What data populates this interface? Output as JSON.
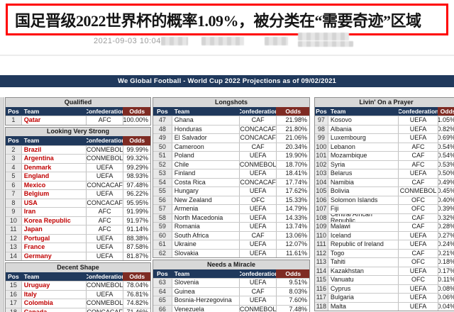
{
  "headline": {
    "text": "国足晋级2022世界杯的概率1.09%，被分类在“需要奇迹”区域"
  },
  "meta": {
    "timestamp": "2021-09-03 10:04:01",
    "redacted_note": "blurred source text"
  },
  "colors": {
    "headline_border": "#ff0000",
    "navy_header": "#20395c",
    "odds_maroon": "#7e2b23",
    "section_gray": "#d8d8d8",
    "qualified_team_red": "#c00000"
  },
  "report": {
    "title": "We Global Football - World Cup 2022 Projections as of 09/02/2021",
    "columns": [
      "Pos",
      "Team",
      "Confederation",
      "Odds"
    ],
    "tables": [
      {
        "name": "qualified-column",
        "blocks": [
          {
            "section": "Qualified",
            "rows": [
              [
                "1",
                "Qatar",
                "AFC",
                "100.00%"
              ]
            ]
          },
          {
            "section": "Looking Very Strong",
            "rows": [
              [
                "2",
                "Brazil",
                "CONMEBOL",
                "99.99%"
              ],
              [
                "3",
                "Argentina",
                "CONMEBOL",
                "99.32%"
              ],
              [
                "4",
                "Denmark",
                "UEFA",
                "99.29%"
              ],
              [
                "5",
                "England",
                "UEFA",
                "98.93%"
              ],
              [
                "6",
                "Mexico",
                "CONCACAF",
                "97.48%"
              ],
              [
                "7",
                "Belgium",
                "UEFA",
                "96.22%"
              ],
              [
                "8",
                "USA",
                "CONCACAF",
                "95.95%"
              ],
              [
                "9",
                "Iran",
                "AFC",
                "91.99%"
              ],
              [
                "10",
                "Korea Republic",
                "AFC",
                "91.97%"
              ],
              [
                "11",
                "Japan",
                "AFC",
                "91.14%"
              ],
              [
                "12",
                "Portugal",
                "UEFA",
                "88.38%"
              ],
              [
                "13",
                "France",
                "UEFA",
                "87.58%"
              ],
              [
                "14",
                "Germany",
                "UEFA",
                "81.87%"
              ]
            ]
          },
          {
            "section": "Decent Shape",
            "rows": [
              [
                "15",
                "Uruguay",
                "CONMEBOL",
                "78.04%"
              ],
              [
                "16",
                "Italy",
                "UEFA",
                "76.81%"
              ],
              [
                "17",
                "Colombia",
                "CONMEBOL",
                "74.82%"
              ],
              [
                "18",
                "Canada",
                "CONCACAF",
                "71.46%"
              ]
            ]
          }
        ]
      },
      {
        "name": "longshots-column",
        "blocks": [
          {
            "section": "Longshots",
            "rows": [
              [
                "47",
                "Ghana",
                "CAF",
                "21.98%"
              ],
              [
                "48",
                "Honduras",
                "CONCACAF",
                "21.80%"
              ],
              [
                "49",
                "El Salvador",
                "CONCACAF",
                "21.06%"
              ],
              [
                "50",
                "Cameroon",
                "CAF",
                "20.34%"
              ],
              [
                "51",
                "Poland",
                "UEFA",
                "19.90%"
              ],
              [
                "52",
                "Chile",
                "CONMEBOL",
                "18.70%"
              ],
              [
                "53",
                "Finland",
                "UEFA",
                "18.41%"
              ],
              [
                "54",
                "Costa Rica",
                "CONCACAF",
                "17.74%"
              ],
              [
                "55",
                "Hungary",
                "UEFA",
                "17.62%"
              ],
              [
                "56",
                "New Zealand",
                "OFC",
                "15.33%"
              ],
              [
                "57",
                "Armenia",
                "UEFA",
                "14.79%"
              ],
              [
                "58",
                "North Macedonia",
                "UEFA",
                "14.33%"
              ],
              [
                "59",
                "Romania",
                "UEFA",
                "13.74%"
              ],
              [
                "60",
                "South Africa",
                "CAF",
                "13.06%"
              ],
              [
                "61",
                "Ukraine",
                "UEFA",
                "12.07%"
              ],
              [
                "62",
                "Slovakia",
                "UEFA",
                "11.61%"
              ]
            ]
          },
          {
            "section": "Needs a Miracle",
            "rows": [
              [
                "63",
                "Slovenia",
                "UEFA",
                "9.51%"
              ],
              [
                "64",
                "Guinea",
                "CAF",
                "8.03%"
              ],
              [
                "65",
                "Bosnia-Herzegovina",
                "UEFA",
                "7.60%"
              ],
              [
                "66",
                "Venezuela",
                "CONMEBOL",
                "7.48%"
              ]
            ]
          }
        ]
      },
      {
        "name": "livin-on-a-prayer-column",
        "blocks": [
          {
            "section": "Livin' On a Prayer",
            "rows": [
              [
                "97",
                "Kosovo",
                "UEFA",
                "1.05%"
              ],
              [
                "98",
                "Albania",
                "UEFA",
                "0.82%"
              ],
              [
                "99",
                "Luxembourg",
                "UEFA",
                "0.69%"
              ],
              [
                "100",
                "Lebanon",
                "AFC",
                "0.54%"
              ],
              [
                "101",
                "Mozambique",
                "CAF",
                "0.54%"
              ],
              [
                "102",
                "Syria",
                "AFC",
                "0.53%"
              ],
              [
                "103",
                "Belarus",
                "UEFA",
                "0.50%"
              ],
              [
                "104",
                "Namibia",
                "CAF",
                "0.49%"
              ],
              [
                "105",
                "Bolivia",
                "CONMEBOL",
                "0.45%"
              ],
              [
                "106",
                "Solomon Islands",
                "OFC",
                "0.40%"
              ],
              [
                "107",
                "Fiji",
                "OFC",
                "0.39%"
              ],
              [
                "108",
                "Central African Republic",
                "CAF",
                "0.32%"
              ],
              [
                "109",
                "Malawi",
                "CAF",
                "0.28%"
              ],
              [
                "110",
                "Iceland",
                "UEFA",
                "0.27%"
              ],
              [
                "111",
                "Republic of Ireland",
                "UEFA",
                "0.24%"
              ],
              [
                "112",
                "Togo",
                "CAF",
                "0.21%"
              ],
              [
                "113",
                "Tahiti",
                "OFC",
                "0.18%"
              ],
              [
                "114",
                "Kazakhstan",
                "UEFA",
                "0.17%"
              ],
              [
                "115",
                "Vanuatu",
                "OFC",
                "0.11%"
              ],
              [
                "116",
                "Cyprus",
                "UEFA",
                "0.08%"
              ],
              [
                "117",
                "Bulgaria",
                "UEFA",
                "0.06%"
              ],
              [
                "118",
                "Malta",
                "UEFA",
                "0.04%"
              ]
            ]
          }
        ]
      }
    ]
  }
}
